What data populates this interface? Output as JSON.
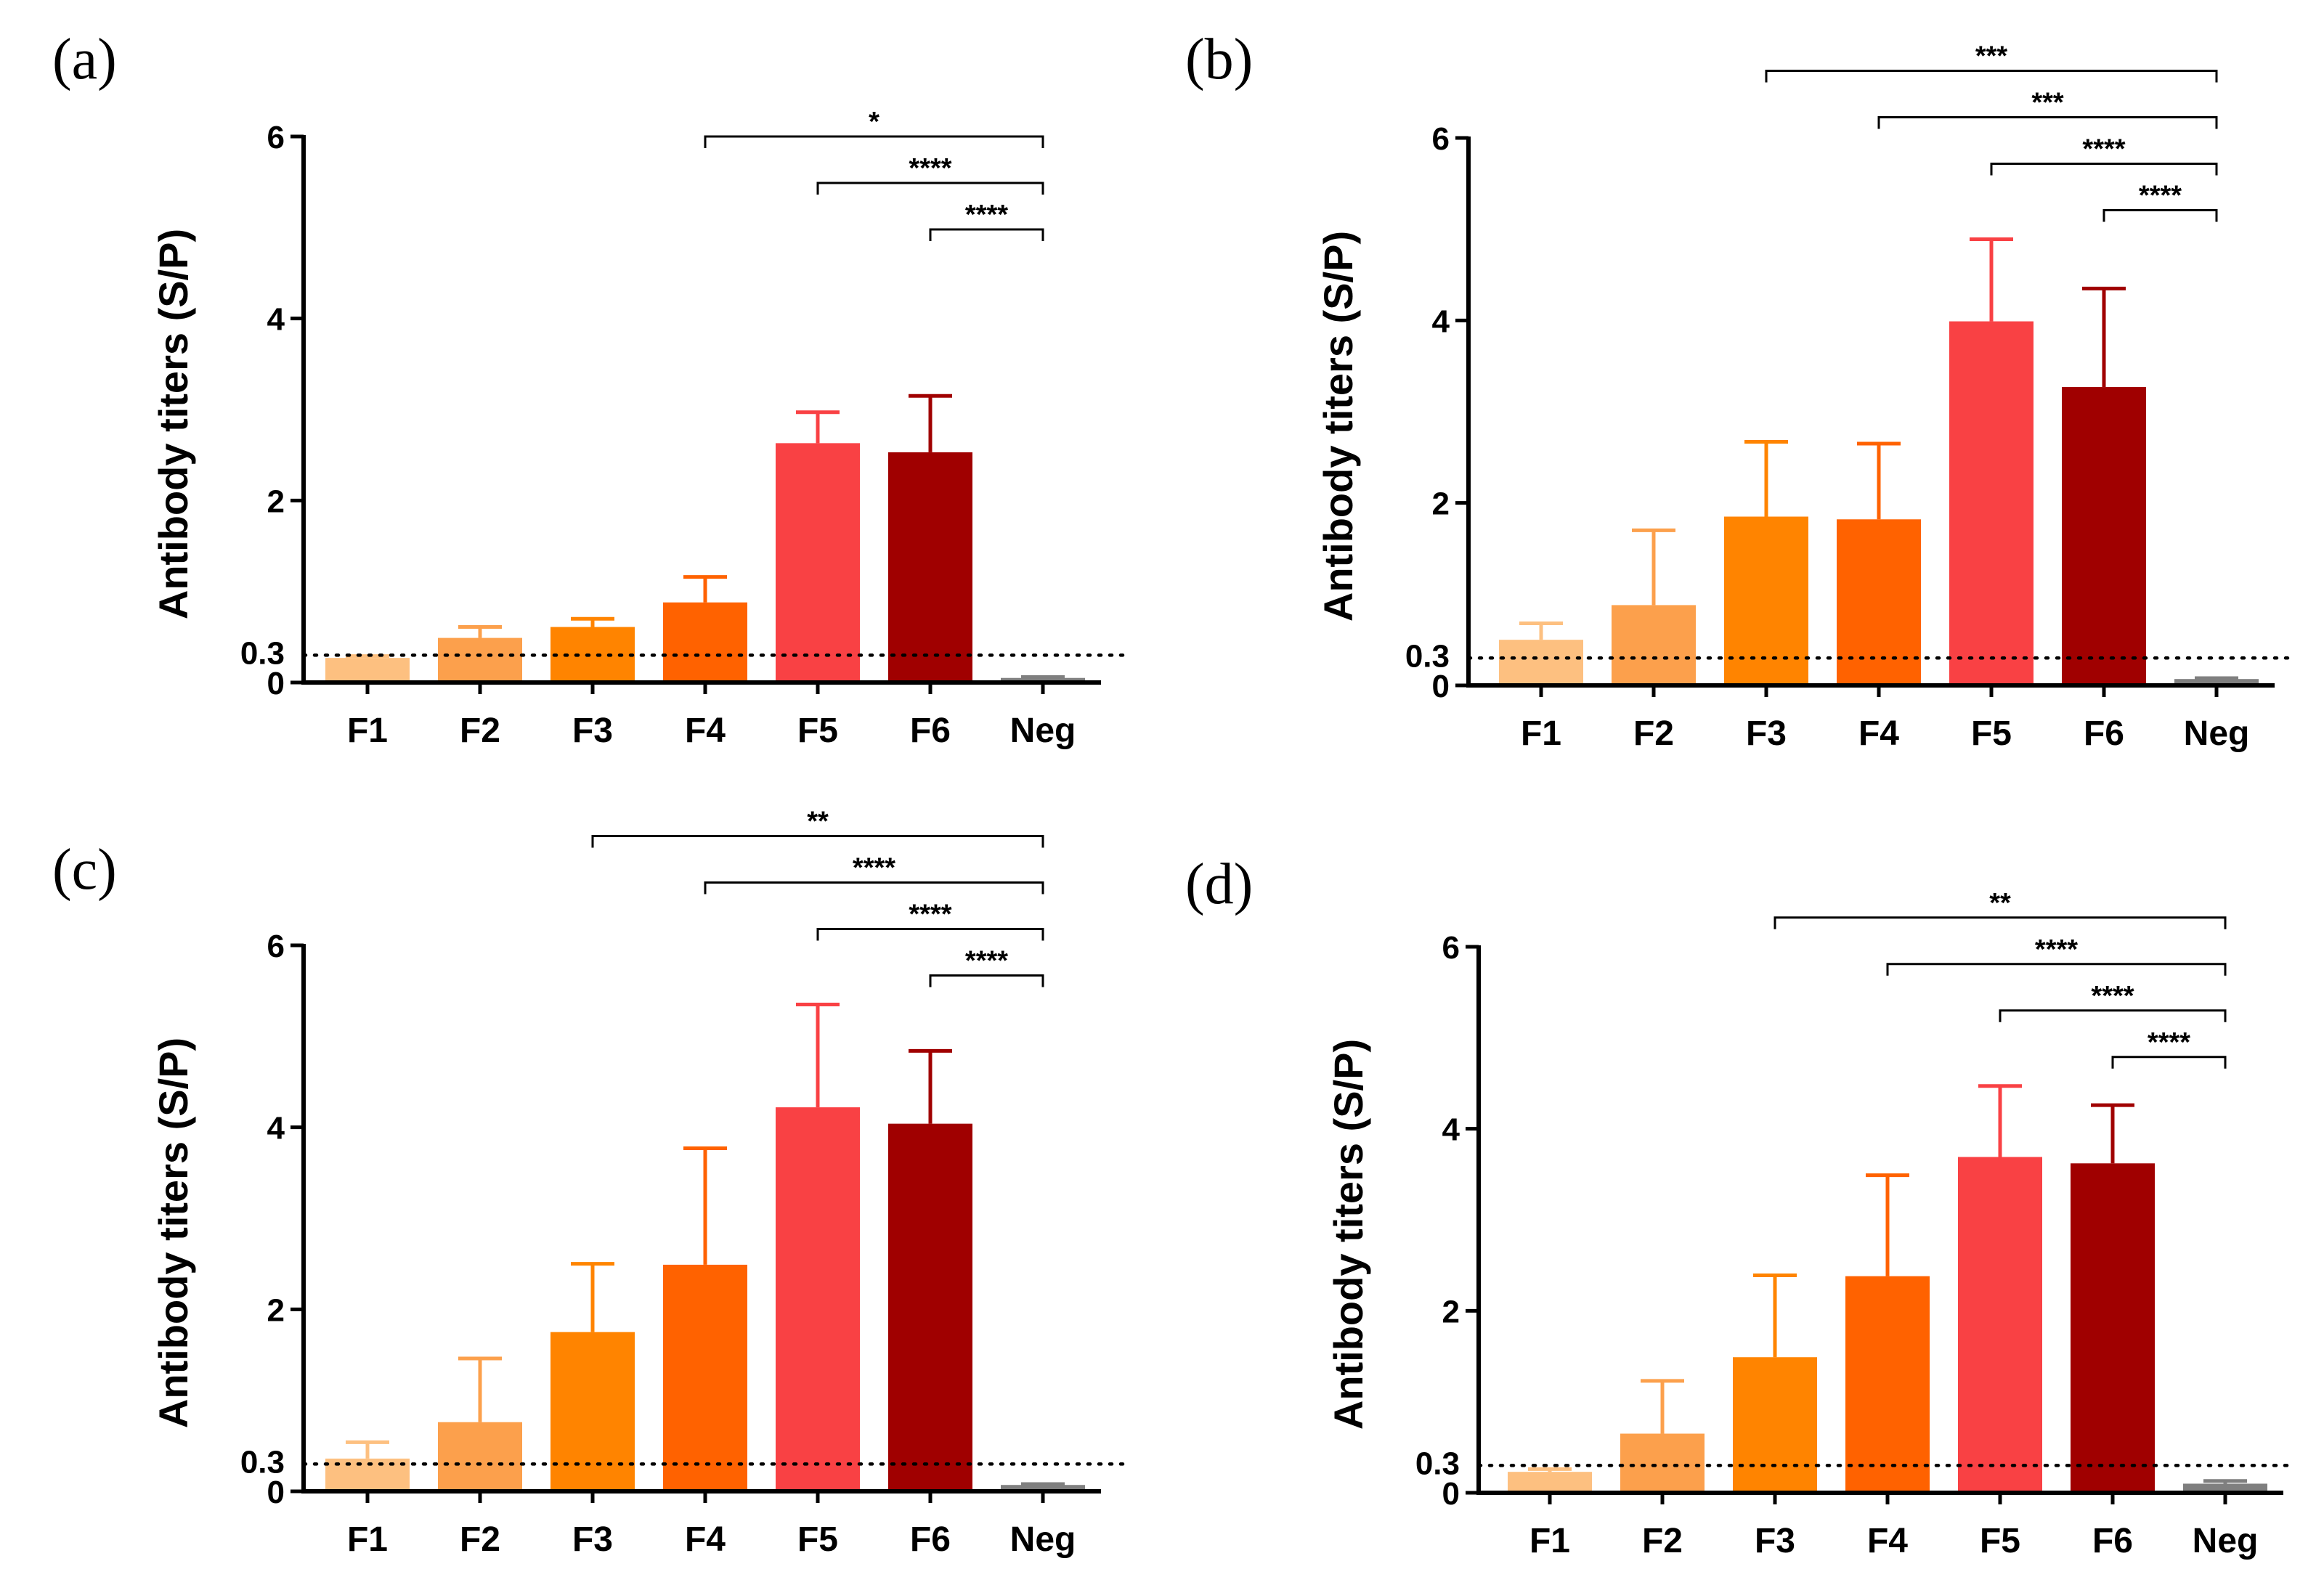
{
  "figure": {
    "y_axis_title": "Antibody titers (S/P)",
    "threshold_label": "0.3"
  },
  "chart_data": [
    {
      "panel": "(a)",
      "type": "bar",
      "ylabel": "Antibody titers (S/P)",
      "ylim": [
        0,
        6
      ],
      "yticks": [
        0,
        2,
        4,
        6
      ],
      "cutoff": 0.3,
      "categories": [
        "F1",
        "F2",
        "F3",
        "F4",
        "F5",
        "F6",
        "Neg"
      ],
      "values": [
        0.27,
        0.49,
        0.61,
        0.88,
        2.63,
        2.53,
        0.05
      ],
      "errors": [
        0.02,
        0.12,
        0.09,
        0.28,
        0.34,
        0.62,
        0.01
      ],
      "colors": [
        "#FDC080",
        "#FCA04C",
        "#FF8400",
        "#FF6200",
        "#F94144",
        "#A00000",
        "#7F7F7F"
      ],
      "comparisons": [
        {
          "from": "F4",
          "to": "Neg",
          "label": "*"
        },
        {
          "from": "F5",
          "to": "Neg",
          "label": "****"
        },
        {
          "from": "F6",
          "to": "Neg",
          "label": "****"
        }
      ]
    },
    {
      "panel": "(b)",
      "type": "bar",
      "ylabel": "Antibody titers (S/P)",
      "ylim": [
        0,
        6
      ],
      "yticks": [
        0,
        2,
        4,
        6
      ],
      "cutoff": 0.3,
      "categories": [
        "F1",
        "F2",
        "F3",
        "F4",
        "F5",
        "F6",
        "Neg"
      ],
      "values": [
        0.5,
        0.88,
        1.85,
        1.82,
        3.99,
        3.27,
        0.07
      ],
      "errors": [
        0.18,
        0.82,
        0.82,
        0.83,
        0.9,
        1.08,
        0.01
      ],
      "colors": [
        "#FDC080",
        "#FCA04C",
        "#FF8400",
        "#FF6200",
        "#F94144",
        "#A00000",
        "#7F7F7F"
      ],
      "comparisons": [
        {
          "from": "F3",
          "to": "Neg",
          "label": "***"
        },
        {
          "from": "F4",
          "to": "Neg",
          "label": "***"
        },
        {
          "from": "F5",
          "to": "Neg",
          "label": "****"
        },
        {
          "from": "F6",
          "to": "Neg",
          "label": "****"
        }
      ]
    },
    {
      "panel": "(c)",
      "type": "bar",
      "ylabel": "Antibody titers (S/P)",
      "ylim": [
        0,
        6
      ],
      "yticks": [
        0,
        2,
        4,
        6
      ],
      "cutoff": 0.3,
      "categories": [
        "F1",
        "F2",
        "F3",
        "F4",
        "F5",
        "F6",
        "Neg"
      ],
      "values": [
        0.36,
        0.76,
        1.75,
        2.49,
        4.22,
        4.04,
        0.07
      ],
      "errors": [
        0.18,
        0.7,
        0.75,
        1.28,
        1.13,
        0.8,
        0.01
      ],
      "colors": [
        "#FDC080",
        "#FCA04C",
        "#FF8400",
        "#FF6200",
        "#F94144",
        "#A00000",
        "#7F7F7F"
      ],
      "comparisons": [
        {
          "from": "F3",
          "to": "Neg",
          "label": "**"
        },
        {
          "from": "F4",
          "to": "Neg",
          "label": "****"
        },
        {
          "from": "F5",
          "to": "Neg",
          "label": "****"
        },
        {
          "from": "F6",
          "to": "Neg",
          "label": "****"
        }
      ]
    },
    {
      "panel": "(d)",
      "type": "bar",
      "ylabel": "Antibody titers (S/P)",
      "ylim": [
        0,
        6
      ],
      "yticks": [
        0,
        2,
        4,
        6
      ],
      "cutoff": 0.3,
      "categories": [
        "F1",
        "F2",
        "F3",
        "F4",
        "F5",
        "F6",
        "Neg"
      ],
      "values": [
        0.23,
        0.65,
        1.49,
        2.38,
        3.69,
        3.62,
        0.1
      ],
      "errors": [
        0.03,
        0.58,
        0.9,
        1.11,
        0.78,
        0.64,
        0.03
      ],
      "colors": [
        "#FDC080",
        "#FCA04C",
        "#FF8400",
        "#FF6200",
        "#F94144",
        "#A00000",
        "#7F7F7F"
      ],
      "comparisons": [
        {
          "from": "F3",
          "to": "Neg",
          "label": "**"
        },
        {
          "from": "F4",
          "to": "Neg",
          "label": "****"
        },
        {
          "from": "F5",
          "to": "Neg",
          "label": "****"
        },
        {
          "from": "F6",
          "to": "Neg",
          "label": "****"
        }
      ]
    }
  ]
}
